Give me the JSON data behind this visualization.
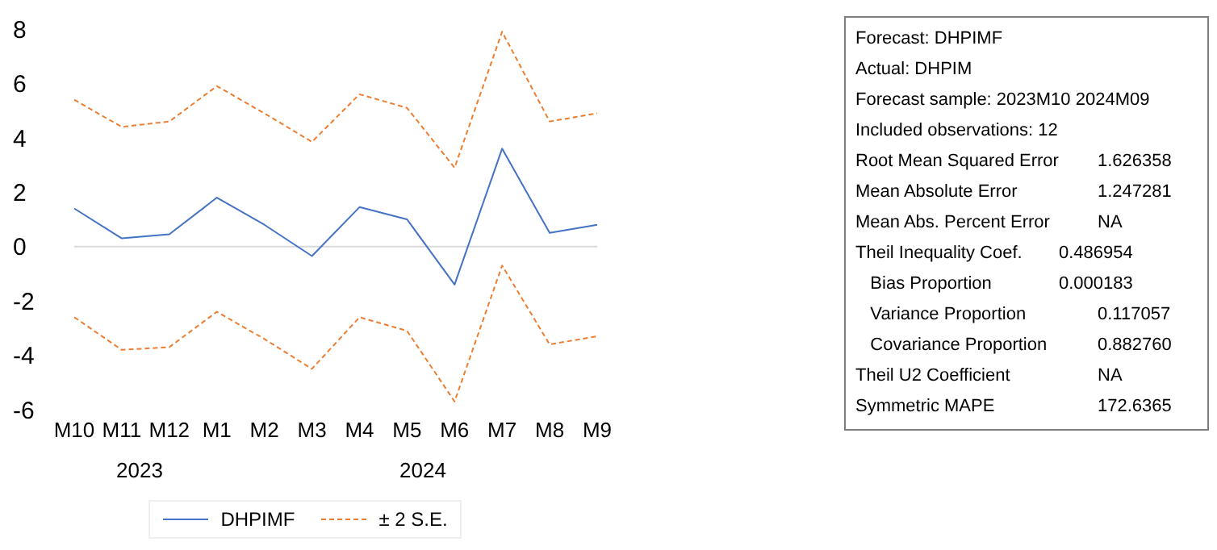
{
  "chart_data": [
    {
      "type": "line",
      "categories": [
        "M10",
        "M11",
        "M12",
        "M1",
        "M2",
        "M3",
        "M4",
        "M5",
        "M6",
        "M7",
        "M8",
        "M9"
      ],
      "series": [
        {
          "name": "DHPIMF",
          "color": "#4472c4",
          "line_style": "solid",
          "values": [
            1.4,
            0.3,
            0.45,
            1.8,
            0.8,
            -0.35,
            1.45,
            1.0,
            -1.4,
            3.6,
            0.5,
            0.8
          ]
        },
        {
          "name": "± 2 S.E.",
          "color": "#ed7d31",
          "line_style": "dashed",
          "values": [
            5.4,
            4.4,
            4.6,
            5.9,
            4.9,
            3.85,
            5.6,
            5.1,
            2.9,
            7.9,
            4.6,
            4.9
          ]
        },
        {
          "color": "#ed7d31",
          "line_style": "dashed",
          "values": [
            -2.6,
            -3.8,
            -3.7,
            -2.4,
            -3.4,
            -4.5,
            -2.6,
            -3.1,
            -5.7,
            -0.7,
            -3.6,
            -3.3
          ]
        }
      ],
      "ylim": [
        -6,
        8
      ],
      "yticks": [
        -6,
        -4,
        -2,
        0,
        2,
        4,
        6,
        8
      ],
      "ref_lines": [
        {
          "axis": "y",
          "value": 0,
          "color": "#d9d9d9"
        }
      ],
      "annotations": [
        "2023",
        "2024"
      ],
      "grid": false,
      "marker": "none",
      "legend": "bottom"
    },
    {
      "type": "other",
      "annotations": [
        "Forecast: DHPIMF",
        "Actual: DHPIM",
        "Forecast sample: 2023M10 2024M09",
        "Included observations: 12",
        "Root Mean Squared Error\t\t1.626358",
        "Mean Absolute Error\t\t1.247281",
        "Mean Abs. Percent Error\t\tNA",
        "Theil Inequality Coef.\t0.486954\t",
        "   Bias Proportion\t0.000183\t",
        "   Variance Proportion\t\t0.117057",
        "   Covariance Proportion\t\t0.882760",
        "Theil U2 Coefficient\t\tNA",
        "Symmetric MAPE\t\t172.6365"
      ]
    }
  ]
}
